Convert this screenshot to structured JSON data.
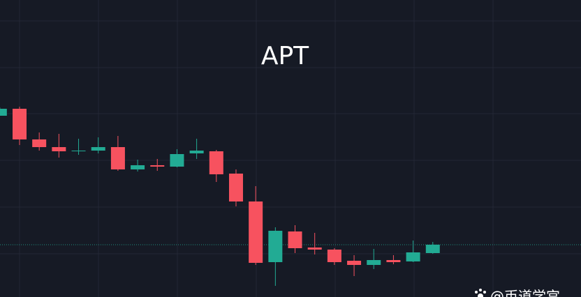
{
  "chart_data": {
    "type": "candlestick",
    "title": "APT",
    "open": [
      26.0,
      27.0,
      22.6,
      21.5,
      20.9,
      21.0,
      21.5,
      18.3,
      18.9,
      18.7,
      20.6,
      20.9,
      17.7,
      13.7,
      5.0,
      9.4,
      7.1,
      6.8,
      5.2,
      4.6,
      5.3,
      5.1,
      6.3
    ],
    "close": [
      27.0,
      22.6,
      21.5,
      20.9,
      21.0,
      21.5,
      18.3,
      18.9,
      18.7,
      20.5,
      21.0,
      17.6,
      13.7,
      4.9,
      9.5,
      7.0,
      6.8,
      5.0,
      4.6,
      5.3,
      5.0,
      6.4,
      7.5
    ],
    "high": [
      27.2,
      27.3,
      23.6,
      23.4,
      22.7,
      22.9,
      23.1,
      19.7,
      19.8,
      21.2,
      22.7,
      21.1,
      18.3,
      15.9,
      10.0,
      10.3,
      9.2,
      7.0,
      6.0,
      6.9,
      6.0,
      8.1,
      7.9
    ],
    "low": [
      26.0,
      21.8,
      21.0,
      20.0,
      20.4,
      20.6,
      18.1,
      18.0,
      18.1,
      18.6,
      19.8,
      16.5,
      13.0,
      4.6,
      1.6,
      6.3,
      6.1,
      4.6,
      3.0,
      4.0,
      4.7,
      5.0,
      6.2
    ],
    "up_color": "#22ab94",
    "down_color": "#f7525f",
    "ylim": [
      0,
      42.6
    ],
    "last_price_line": true,
    "watermark": "@币道学宫"
  }
}
